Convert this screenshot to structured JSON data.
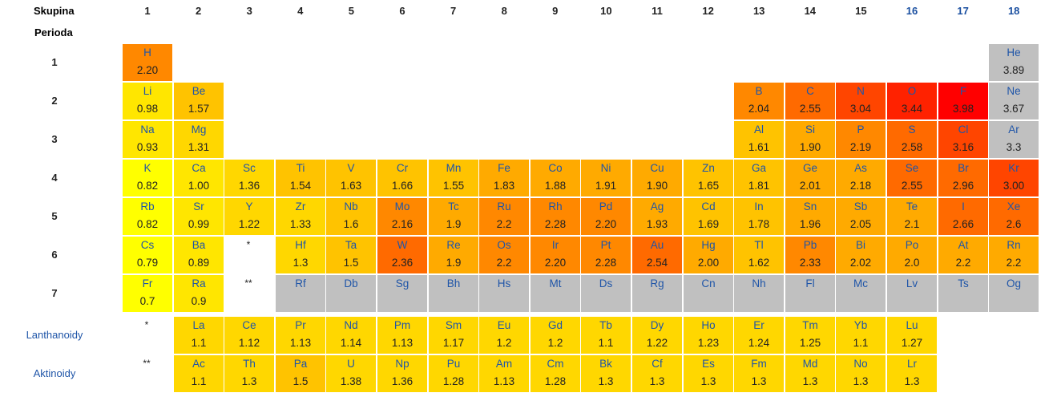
{
  "headers": {
    "group_label": "Skupina",
    "period_label": "Perioda"
  },
  "groups": [
    "1",
    "2",
    "3",
    "4",
    "5",
    "6",
    "7",
    "8",
    "9",
    "10",
    "11",
    "12",
    "13",
    "14",
    "15",
    "16",
    "17",
    "18"
  ],
  "group_colors": {
    "default": "#222222",
    "highlight": "#1a4fa0"
  },
  "periods": [
    "1",
    "2",
    "3",
    "4",
    "5",
    "6",
    "7"
  ],
  "placeholders": {
    "lanthanoid_mark": "*",
    "actinoid_mark": "**"
  },
  "series_labels": {
    "lanthanoids": "Lanthanoidy",
    "actinoids": "Aktinoidy"
  },
  "link_color": "#1f55a8",
  "colors": {
    "yellow": "#ffff00",
    "y2": "#ffe600",
    "y3": "#ffd700",
    "amber": "#ffc300",
    "orange1": "#ffaa00",
    "orange2": "#ff8800",
    "orange3": "#ff6a00",
    "red1": "#ff4500",
    "red2": "#ff2200",
    "red3": "#ff0000",
    "gray": "#c0c0c0"
  },
  "elements": [
    {
      "symbol": "H",
      "en": "2.20",
      "color": "orange2"
    },
    {
      "symbol": "He",
      "en": "3.89",
      "color": "gray"
    },
    {
      "symbol": "Li",
      "en": "0.98",
      "color": "y2"
    },
    {
      "symbol": "Be",
      "en": "1.57",
      "color": "amber"
    },
    {
      "symbol": "B",
      "en": "2.04",
      "color": "orange2"
    },
    {
      "symbol": "C",
      "en": "2.55",
      "color": "orange3"
    },
    {
      "symbol": "N",
      "en": "3.04",
      "color": "red1"
    },
    {
      "symbol": "O",
      "en": "3.44",
      "color": "red2"
    },
    {
      "symbol": "F",
      "en": "3.98",
      "color": "red3"
    },
    {
      "symbol": "Ne",
      "en": "3.67",
      "color": "gray"
    },
    {
      "symbol": "Na",
      "en": "0.93",
      "color": "y2"
    },
    {
      "symbol": "Mg",
      "en": "1.31",
      "color": "y3"
    },
    {
      "symbol": "Al",
      "en": "1.61",
      "color": "amber"
    },
    {
      "symbol": "Si",
      "en": "1.90",
      "color": "orange1"
    },
    {
      "symbol": "P",
      "en": "2.19",
      "color": "orange2"
    },
    {
      "symbol": "S",
      "en": "2.58",
      "color": "orange3"
    },
    {
      "symbol": "Cl",
      "en": "3.16",
      "color": "red1"
    },
    {
      "symbol": "Ar",
      "en": "3.3",
      "color": "gray"
    },
    {
      "symbol": "K",
      "en": "0.82",
      "color": "yellow"
    },
    {
      "symbol": "Ca",
      "en": "1.00",
      "color": "y2"
    },
    {
      "symbol": "Sc",
      "en": "1.36",
      "color": "y3"
    },
    {
      "symbol": "Ti",
      "en": "1.54",
      "color": "amber"
    },
    {
      "symbol": "V",
      "en": "1.63",
      "color": "amber"
    },
    {
      "symbol": "Cr",
      "en": "1.66",
      "color": "amber"
    },
    {
      "symbol": "Mn",
      "en": "1.55",
      "color": "amber"
    },
    {
      "symbol": "Fe",
      "en": "1.83",
      "color": "orange1"
    },
    {
      "symbol": "Co",
      "en": "1.88",
      "color": "orange1"
    },
    {
      "symbol": "Ni",
      "en": "1.91",
      "color": "orange1"
    },
    {
      "symbol": "Cu",
      "en": "1.90",
      "color": "orange1"
    },
    {
      "symbol": "Zn",
      "en": "1.65",
      "color": "amber"
    },
    {
      "symbol": "Ga",
      "en": "1.81",
      "color": "amber"
    },
    {
      "symbol": "Ge",
      "en": "2.01",
      "color": "orange1"
    },
    {
      "symbol": "As",
      "en": "2.18",
      "color": "orange1"
    },
    {
      "symbol": "Se",
      "en": "2.55",
      "color": "orange3"
    },
    {
      "symbol": "Br",
      "en": "2.96",
      "color": "orange3"
    },
    {
      "symbol": "Kr",
      "en": "3.00",
      "color": "red1"
    },
    {
      "symbol": "Rb",
      "en": "0.82",
      "color": "yellow"
    },
    {
      "symbol": "Sr",
      "en": "0.99",
      "color": "y2"
    },
    {
      "symbol": "Y",
      "en": "1.22",
      "color": "y3"
    },
    {
      "symbol": "Zr",
      "en": "1.33",
      "color": "y3"
    },
    {
      "symbol": "Nb",
      "en": "1.6",
      "color": "amber"
    },
    {
      "symbol": "Mo",
      "en": "2.16",
      "color": "orange2"
    },
    {
      "symbol": "Tc",
      "en": "1.9",
      "color": "orange1"
    },
    {
      "symbol": "Ru",
      "en": "2.2",
      "color": "orange2"
    },
    {
      "symbol": "Rh",
      "en": "2.28",
      "color": "orange2"
    },
    {
      "symbol": "Pd",
      "en": "2.20",
      "color": "orange2"
    },
    {
      "symbol": "Ag",
      "en": "1.93",
      "color": "orange1"
    },
    {
      "symbol": "Cd",
      "en": "1.69",
      "color": "amber"
    },
    {
      "symbol": "In",
      "en": "1.78",
      "color": "amber"
    },
    {
      "symbol": "Sn",
      "en": "1.96",
      "color": "orange1"
    },
    {
      "symbol": "Sb",
      "en": "2.05",
      "color": "orange1"
    },
    {
      "symbol": "Te",
      "en": "2.1",
      "color": "orange1"
    },
    {
      "symbol": "I",
      "en": "2.66",
      "color": "orange3"
    },
    {
      "symbol": "Xe",
      "en": "2.6",
      "color": "orange3"
    },
    {
      "symbol": "Cs",
      "en": "0.79",
      "color": "yellow"
    },
    {
      "symbol": "Ba",
      "en": "0.89",
      "color": "y2"
    },
    {
      "symbol": "Hf",
      "en": "1.3",
      "color": "y3"
    },
    {
      "symbol": "Ta",
      "en": "1.5",
      "color": "amber"
    },
    {
      "symbol": "W",
      "en": "2.36",
      "color": "orange3"
    },
    {
      "symbol": "Re",
      "en": "1.9",
      "color": "orange1"
    },
    {
      "symbol": "Os",
      "en": "2.2",
      "color": "orange2"
    },
    {
      "symbol": "Ir",
      "en": "2.20",
      "color": "orange2"
    },
    {
      "symbol": "Pt",
      "en": "2.28",
      "color": "orange2"
    },
    {
      "symbol": "Au",
      "en": "2.54",
      "color": "orange3"
    },
    {
      "symbol": "Hg",
      "en": "2.00",
      "color": "orange1"
    },
    {
      "symbol": "Tl",
      "en": "1.62",
      "color": "amber"
    },
    {
      "symbol": "Pb",
      "en": "2.33",
      "color": "orange2"
    },
    {
      "symbol": "Bi",
      "en": "2.02",
      "color": "orange1"
    },
    {
      "symbol": "Po",
      "en": "2.0",
      "color": "orange1"
    },
    {
      "symbol": "At",
      "en": "2.2",
      "color": "orange1"
    },
    {
      "symbol": "Rn",
      "en": "2.2",
      "color": "orange1"
    },
    {
      "symbol": "Fr",
      "en": "0.7",
      "color": "yellow"
    },
    {
      "symbol": "Ra",
      "en": "0.9",
      "color": "y2"
    },
    {
      "symbol": "Rf",
      "en": "",
      "color": "gray"
    },
    {
      "symbol": "Db",
      "en": "",
      "color": "gray"
    },
    {
      "symbol": "Sg",
      "en": "",
      "color": "gray"
    },
    {
      "symbol": "Bh",
      "en": "",
      "color": "gray"
    },
    {
      "symbol": "Hs",
      "en": "",
      "color": "gray"
    },
    {
      "symbol": "Mt",
      "en": "",
      "color": "gray"
    },
    {
      "symbol": "Ds",
      "en": "",
      "color": "gray"
    },
    {
      "symbol": "Rg",
      "en": "",
      "color": "gray"
    },
    {
      "symbol": "Cn",
      "en": "",
      "color": "gray"
    },
    {
      "symbol": "Nh",
      "en": "",
      "color": "gray"
    },
    {
      "symbol": "Fl",
      "en": "",
      "color": "gray"
    },
    {
      "symbol": "Mc",
      "en": "",
      "color": "gray"
    },
    {
      "symbol": "Lv",
      "en": "",
      "color": "gray"
    },
    {
      "symbol": "Ts",
      "en": "",
      "color": "gray"
    },
    {
      "symbol": "Og",
      "en": "",
      "color": "gray"
    },
    {
      "symbol": "La",
      "en": "1.1",
      "color": "y3"
    },
    {
      "symbol": "Ce",
      "en": "1.12",
      "color": "y3"
    },
    {
      "symbol": "Pr",
      "en": "1.13",
      "color": "y3"
    },
    {
      "symbol": "Nd",
      "en": "1.14",
      "color": "y3"
    },
    {
      "symbol": "Pm",
      "en": "1.13",
      "color": "y3"
    },
    {
      "symbol": "Sm",
      "en": "1.17",
      "color": "y3"
    },
    {
      "symbol": "Eu",
      "en": "1.2",
      "color": "y3"
    },
    {
      "symbol": "Gd",
      "en": "1.2",
      "color": "y3"
    },
    {
      "symbol": "Tb",
      "en": "1.1",
      "color": "y3"
    },
    {
      "symbol": "Dy",
      "en": "1.22",
      "color": "y3"
    },
    {
      "symbol": "Ho",
      "en": "1.23",
      "color": "y3"
    },
    {
      "symbol": "Er",
      "en": "1.24",
      "color": "y3"
    },
    {
      "symbol": "Tm",
      "en": "1.25",
      "color": "y3"
    },
    {
      "symbol": "Yb",
      "en": "1.1",
      "color": "y3"
    },
    {
      "symbol": "Lu",
      "en": "1.27",
      "color": "y3"
    },
    {
      "symbol": "Ac",
      "en": "1.1",
      "color": "y3"
    },
    {
      "symbol": "Th",
      "en": "1.3",
      "color": "y3"
    },
    {
      "symbol": "Pa",
      "en": "1.5",
      "color": "amber"
    },
    {
      "symbol": "U",
      "en": "1.38",
      "color": "y3"
    },
    {
      "symbol": "Np",
      "en": "1.36",
      "color": "y3"
    },
    {
      "symbol": "Pu",
      "en": "1.28",
      "color": "y3"
    },
    {
      "symbol": "Am",
      "en": "1.13",
      "color": "y3"
    },
    {
      "symbol": "Cm",
      "en": "1.28",
      "color": "y3"
    },
    {
      "symbol": "Bk",
      "en": "1.3",
      "color": "y3"
    },
    {
      "symbol": "Cf",
      "en": "1.3",
      "color": "y3"
    },
    {
      "symbol": "Es",
      "en": "1.3",
      "color": "y3"
    },
    {
      "symbol": "Fm",
      "en": "1.3",
      "color": "y3"
    },
    {
      "symbol": "Md",
      "en": "1.3",
      "color": "y3"
    },
    {
      "symbol": "No",
      "en": "1.3",
      "color": "y3"
    },
    {
      "symbol": "Lr",
      "en": "1.3",
      "color": "y3"
    }
  ]
}
